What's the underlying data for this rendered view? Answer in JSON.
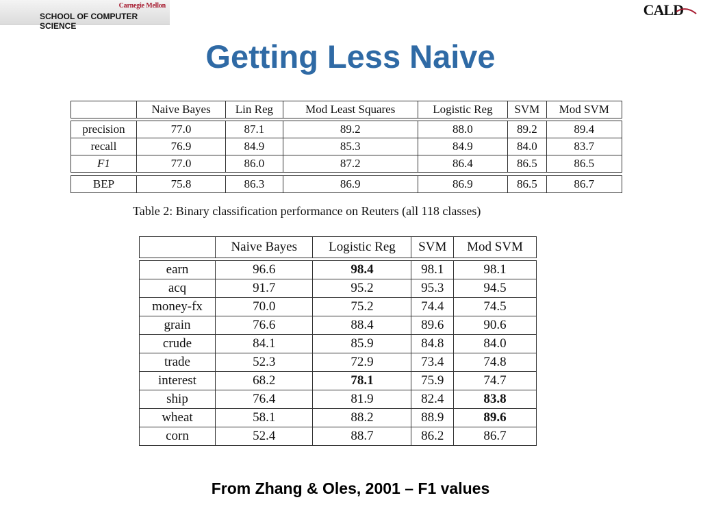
{
  "header": {
    "cmu_name": "Carnegie Mellon",
    "school": "SCHOOL OF COMPUTER SCIENCE",
    "cald_logo": "CALD"
  },
  "title": "Getting Less Naive",
  "table1": {
    "columns": [
      "",
      "Naive Bayes",
      "Lin Reg",
      "Mod Least Squares",
      "Logistic Reg",
      "SVM",
      "Mod SVM"
    ],
    "rows": [
      {
        "label": "precision",
        "values": [
          "77.0",
          "87.1",
          "89.2",
          "88.0",
          "89.2",
          "89.4"
        ]
      },
      {
        "label": "recall",
        "values": [
          "76.9",
          "84.9",
          "85.3",
          "84.9",
          "84.0",
          "83.7"
        ]
      },
      {
        "label": "F1",
        "values": [
          "77.0",
          "86.0",
          "87.2",
          "86.4",
          "86.5",
          "86.5"
        ]
      },
      {
        "label": "BEP",
        "values": [
          "75.8",
          "86.3",
          "86.9",
          "86.9",
          "86.5",
          "86.7"
        ]
      }
    ],
    "caption": "Table 2: Binary classification performance on Reuters (all 118 classes)"
  },
  "table2": {
    "columns": [
      "",
      "Naive Bayes",
      "Logistic Reg",
      "SVM",
      "Mod SVM"
    ],
    "rows": [
      {
        "label": "earn",
        "values": [
          "96.6",
          "98.4",
          "98.1",
          "98.1"
        ],
        "bold": [
          false,
          true,
          false,
          false
        ]
      },
      {
        "label": "acq",
        "values": [
          "91.7",
          "95.2",
          "95.3",
          "94.5"
        ],
        "bold": [
          false,
          false,
          false,
          false
        ]
      },
      {
        "label": "money-fx",
        "values": [
          "70.0",
          "75.2",
          "74.4",
          "74.5"
        ],
        "bold": [
          false,
          false,
          false,
          false
        ]
      },
      {
        "label": "grain",
        "values": [
          "76.6",
          "88.4",
          "89.6",
          "90.6"
        ],
        "bold": [
          false,
          false,
          false,
          false
        ]
      },
      {
        "label": "crude",
        "values": [
          "84.1",
          "85.9",
          "84.8",
          "84.0"
        ],
        "bold": [
          false,
          false,
          false,
          false
        ]
      },
      {
        "label": "trade",
        "values": [
          "52.3",
          "72.9",
          "73.4",
          "74.8"
        ],
        "bold": [
          false,
          false,
          false,
          false
        ]
      },
      {
        "label": "interest",
        "values": [
          "68.2",
          "78.1",
          "75.9",
          "74.7"
        ],
        "bold": [
          false,
          true,
          false,
          false
        ]
      },
      {
        "label": "ship",
        "values": [
          "76.4",
          "81.9",
          "82.4",
          "83.8"
        ],
        "bold": [
          false,
          false,
          false,
          true
        ]
      },
      {
        "label": "wheat",
        "values": [
          "58.1",
          "88.2",
          "88.9",
          "89.6"
        ],
        "bold": [
          false,
          false,
          false,
          true
        ]
      },
      {
        "label": "corn",
        "values": [
          "52.4",
          "88.7",
          "86.2",
          "86.7"
        ],
        "bold": [
          false,
          false,
          false,
          false
        ]
      }
    ]
  },
  "bottom_caption": "From Zhang & Oles, 2001 – F1 values",
  "colors": {
    "title": "#2f6aa5",
    "cmu_red": "#a6192e"
  }
}
